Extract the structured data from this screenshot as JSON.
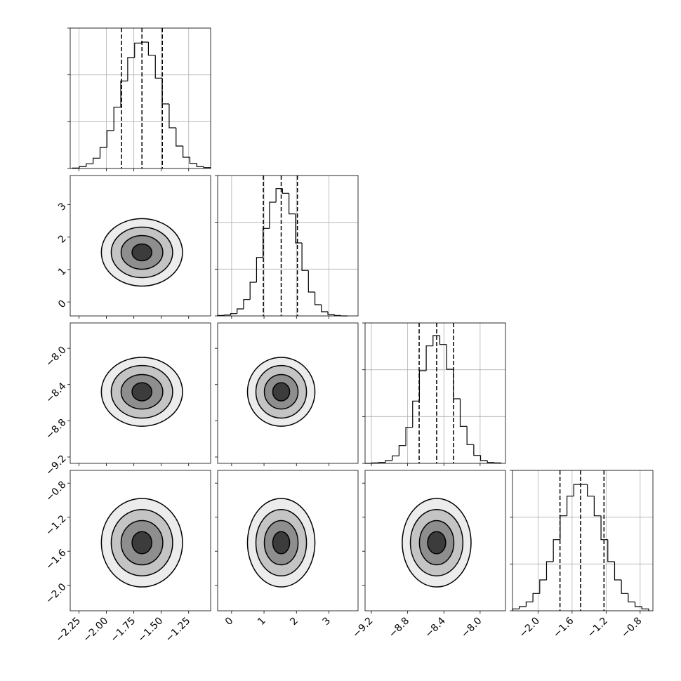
{
  "chart_data": {
    "type": "corner",
    "grid": true,
    "hist_ylim": [
      0,
      3
    ],
    "hist_yticks": [
      0,
      1,
      2,
      3
    ],
    "parameters": [
      {
        "lim": [
          -2.33,
          -1.05
        ],
        "ticks": [
          {
            "value": -2.25,
            "label": "−2.25"
          },
          {
            "value": -2.0,
            "label": "−2.00"
          },
          {
            "value": -1.75,
            "label": "−1.75"
          },
          {
            "value": -1.5,
            "label": "−1.50"
          },
          {
            "value": -1.25,
            "label": "−1.25"
          }
        ],
        "bins": [
          -2.31,
          -2.247,
          -2.184,
          -2.121,
          -2.058,
          -1.995,
          -1.932,
          -1.869,
          -1.806,
          -1.743,
          -1.68,
          -1.617,
          -1.554,
          -1.491,
          -1.428,
          -1.365,
          -1.302,
          -1.239,
          -1.176,
          -1.113,
          -1.05
        ],
        "values": [
          0.01,
          0.04,
          0.1,
          0.22,
          0.45,
          0.81,
          1.31,
          1.87,
          2.37,
          2.68,
          2.7,
          2.42,
          1.93,
          1.38,
          0.87,
          0.48,
          0.24,
          0.11,
          0.04,
          0.02
        ],
        "quantiles": [
          -1.862,
          -1.676,
          -1.49
        ],
        "contour_radii": [
          0.37,
          0.28,
          0.19,
          0.09
        ]
      },
      {
        "lim": [
          -0.43,
          3.9
        ],
        "ticks": [
          0,
          1,
          2,
          3
        ],
        "bins": [
          -0.43,
          -0.23,
          -0.03,
          0.17,
          0.37,
          0.57,
          0.77,
          0.97,
          1.17,
          1.37,
          1.57,
          1.77,
          1.97,
          2.17,
          2.37,
          2.57,
          2.77,
          2.97,
          3.17,
          3.37,
          3.57
        ],
        "values": [
          0.01,
          0.02,
          0.05,
          0.15,
          0.35,
          0.72,
          1.25,
          1.87,
          2.43,
          2.72,
          2.62,
          2.18,
          1.56,
          0.97,
          0.51,
          0.24,
          0.09,
          0.03,
          0.01,
          0.0
        ],
        "quantiles": [
          0.98,
          1.53,
          2.03
        ],
        "contour_radii": [
          1.04,
          0.78,
          0.52,
          0.26
        ]
      },
      {
        "lim": [
          -9.27,
          -7.72
        ],
        "ticks": [
          {
            "value": -9.2,
            "label": "−9.2"
          },
          {
            "value": -8.8,
            "label": "−8.8"
          },
          {
            "value": -8.4,
            "label": "−8.4"
          },
          {
            "value": -8.0,
            "label": "−8.0"
          }
        ],
        "bins": [
          -9.27,
          -9.195,
          -9.12,
          -9.045,
          -8.97,
          -8.895,
          -8.82,
          -8.745,
          -8.67,
          -8.595,
          -8.52,
          -8.445,
          -8.37,
          -8.295,
          -8.22,
          -8.145,
          -8.07,
          -7.995,
          -7.92,
          -7.845,
          -7.77
        ],
        "values": [
          0.0,
          0.01,
          0.02,
          0.06,
          0.16,
          0.38,
          0.77,
          1.33,
          1.98,
          2.51,
          2.73,
          2.54,
          2.01,
          1.38,
          0.79,
          0.4,
          0.17,
          0.06,
          0.02,
          0.01
        ],
        "quantiles": [
          -8.673,
          -8.48,
          -8.294
        ],
        "contour_radii": [
          0.38,
          0.29,
          0.19,
          0.1
        ]
      },
      {
        "lim": [
          -2.3,
          -0.65
        ],
        "ticks": [
          {
            "value": -2.0,
            "label": "−2.0"
          },
          {
            "value": -1.6,
            "label": "−1.6"
          },
          {
            "value": -1.2,
            "label": "−1.2"
          },
          {
            "value": -0.8,
            "label": "−0.8"
          }
        ],
        "bins": [
          -2.3,
          -2.22,
          -2.14,
          -2.06,
          -1.98,
          -1.9,
          -1.82,
          -1.74,
          -1.66,
          -1.58,
          -1.5,
          -1.42,
          -1.34,
          -1.26,
          -1.18,
          -1.1,
          -1.02,
          -0.94,
          -0.86,
          -0.78,
          -0.7
        ],
        "values": [
          0.04,
          0.09,
          0.19,
          0.37,
          0.66,
          1.05,
          1.52,
          2.03,
          2.45,
          2.7,
          2.7,
          2.45,
          2.03,
          1.52,
          1.05,
          0.66,
          0.37,
          0.19,
          0.09,
          0.04
        ],
        "quantiles": [
          -1.742,
          -1.5,
          -1.225
        ],
        "contour_radii": [
          0.52,
          0.39,
          0.26,
          0.13
        ]
      }
    ]
  }
}
